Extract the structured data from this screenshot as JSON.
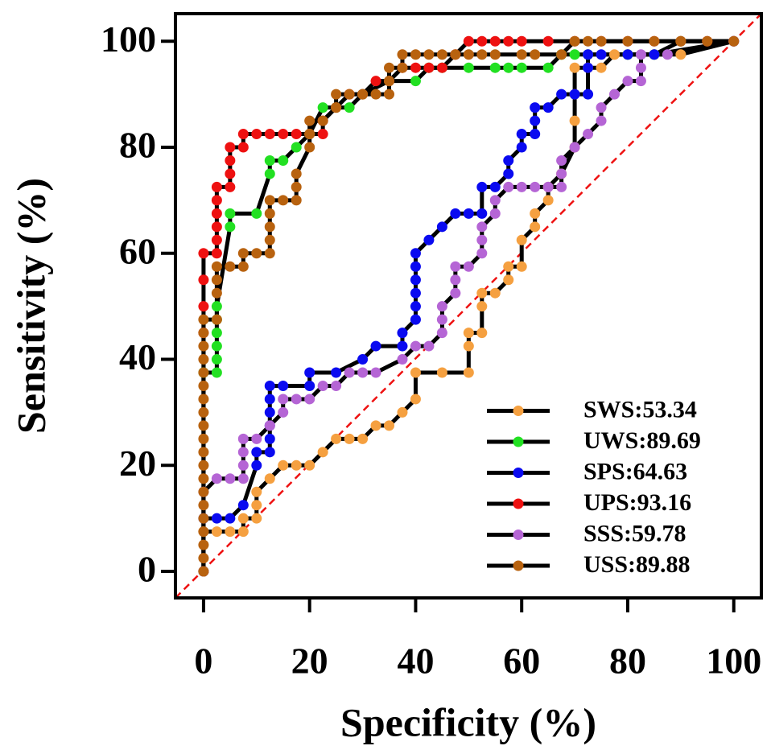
{
  "chart_data": {
    "type": "line",
    "xlabel": "Specificity (%)",
    "ylabel": "Sensitivity (%)",
    "xlim": [
      -5.3,
      105.2
    ],
    "ylim": [
      -5,
      105.2
    ],
    "xticks": [
      0,
      20,
      40,
      60,
      80,
      100
    ],
    "yticks": [
      0,
      20,
      40,
      60,
      80,
      100
    ],
    "legend": "lower right",
    "line_color": "#000000",
    "reference_color": "#ee1111",
    "series": [
      {
        "name": "SWS:53.34",
        "color": "#f5a040",
        "x": [
          0,
          0,
          2.5,
          5,
          7.5,
          7.5,
          10,
          10,
          10,
          12.5,
          15,
          17.5,
          20,
          22.5,
          25,
          27.5,
          30,
          32.5,
          35,
          37.5,
          40,
          40,
          45,
          50,
          50,
          50,
          52.5,
          52.5,
          52.5,
          55,
          57.5,
          57.5,
          60,
          60,
          62.5,
          62.5,
          65,
          65,
          67.5,
          70,
          70,
          70,
          70,
          72.5,
          75,
          77.5,
          80,
          85,
          90,
          100
        ],
        "values": [
          0,
          7.5,
          7.5,
          7.5,
          7.5,
          10,
          10,
          12.5,
          15,
          17.5,
          20,
          20,
          20,
          22.5,
          25,
          25,
          25,
          27.5,
          27.5,
          30,
          32.5,
          37.5,
          37.5,
          37.5,
          42.5,
          45,
          45,
          50,
          52.5,
          52.5,
          55,
          57.5,
          57.5,
          62.5,
          65,
          67.5,
          70,
          72.5,
          75,
          80,
          85,
          90,
          95,
          95,
          95,
          97.5,
          97.5,
          97.5,
          97.5,
          100
        ]
      },
      {
        "name": "UWS:89.69",
        "color": "#22e022",
        "x": [
          0,
          0,
          2.5,
          2.5,
          2.5,
          2.5,
          2.5,
          2.5,
          5,
          5,
          10,
          12.5,
          12.5,
          15,
          17.5,
          20,
          22.5,
          25,
          27.5,
          30,
          35,
          40,
          42.5,
          45,
          50,
          55,
          57.5,
          60,
          65,
          67.5,
          70,
          72.5,
          80,
          85,
          90,
          100
        ],
        "values": [
          0,
          37.5,
          37.5,
          40,
          42.5,
          45,
          47.5,
          50,
          65,
          67.5,
          67.5,
          75,
          77.5,
          77.5,
          80,
          82.5,
          87.5,
          87.5,
          87.5,
          90,
          92.5,
          92.5,
          95,
          95,
          95,
          95,
          95,
          95,
          95,
          97.5,
          97.5,
          97.5,
          97.5,
          97.5,
          100,
          100
        ]
      },
      {
        "name": "SPS:64.63",
        "color": "#0a0af0",
        "x": [
          0,
          0,
          2.5,
          5,
          7.5,
          10,
          10,
          12.5,
          12.5,
          12.5,
          12.5,
          12.5,
          12.5,
          15,
          20,
          20,
          25,
          30,
          32.5,
          37.5,
          37.5,
          40,
          40,
          40,
          40,
          40,
          40,
          42.5,
          45,
          47.5,
          50,
          52.5,
          52.5,
          55,
          57.5,
          57.5,
          60,
          60,
          62.5,
          62.5,
          62.5,
          65,
          67.5,
          70,
          72.5,
          72.5,
          72.5,
          75,
          80,
          85,
          100
        ],
        "values": [
          0,
          10,
          10,
          10,
          12.5,
          20,
          22.5,
          22.5,
          25,
          27.5,
          30,
          32.5,
          35,
          35,
          35,
          37.5,
          37.5,
          40,
          42.5,
          42.5,
          45,
          47.5,
          50,
          52.5,
          55,
          57.5,
          60,
          62.5,
          65,
          67.5,
          67.5,
          67.5,
          72.5,
          72.5,
          75,
          77.5,
          80,
          82.5,
          82.5,
          85,
          87.5,
          87.5,
          90,
          90,
          90,
          95,
          97.5,
          97.5,
          97.5,
          97.5,
          100
        ]
      },
      {
        "name": "UPS:93.16",
        "color": "#ee1111",
        "x": [
          0,
          0,
          0,
          0,
          0,
          2.5,
          2.5,
          2.5,
          2.5,
          2.5,
          2.5,
          5,
          5,
          5,
          5,
          7.5,
          7.5,
          10,
          12.5,
          15,
          17.5,
          20,
          22.5,
          22.5,
          25,
          27.5,
          30,
          32.5,
          35,
          37.5,
          40,
          42.5,
          45,
          47.5,
          50,
          52.5,
          55,
          57.5,
          60,
          65,
          70,
          75,
          80,
          85,
          90,
          95,
          100
        ],
        "values": [
          0,
          45,
          50,
          55,
          60,
          60,
          62.5,
          65,
          67.5,
          70,
          72.5,
          72.5,
          75,
          77.5,
          80,
          80,
          82.5,
          82.5,
          82.5,
          82.5,
          82.5,
          82.5,
          82.5,
          85,
          87.5,
          90,
          90,
          92.5,
          92.5,
          95,
          95,
          95,
          95,
          97.5,
          100,
          100,
          100,
          100,
          100,
          100,
          100,
          100,
          100,
          100,
          100,
          100,
          100
        ]
      },
      {
        "name": "SSS:59.78",
        "color": "#b565d5",
        "x": [
          0,
          0,
          2.5,
          5,
          7.5,
          7.5,
          7.5,
          7.5,
          10,
          12.5,
          15,
          15,
          17.5,
          20,
          22.5,
          25,
          27.5,
          30,
          32.5,
          37.5,
          40,
          42.5,
          45,
          45,
          45,
          47.5,
          47.5,
          47.5,
          50,
          52.5,
          52.5,
          52.5,
          55,
          55,
          57.5,
          60,
          62.5,
          65,
          67.5,
          67.5,
          67.5,
          70,
          72.5,
          75,
          75,
          77.5,
          80,
          82.5,
          82.5,
          82.5,
          87.5,
          100
        ],
        "values": [
          0,
          15,
          17.5,
          17.5,
          17.5,
          20,
          22.5,
          25,
          25,
          27.5,
          30,
          32.5,
          32.5,
          32.5,
          35,
          35,
          37.5,
          37.5,
          37.5,
          40,
          42.5,
          42.5,
          45,
          47.5,
          50,
          52.5,
          55,
          57.5,
          57.5,
          60,
          62.5,
          65,
          67.5,
          70,
          72.5,
          72.5,
          72.5,
          72.5,
          72.5,
          75,
          77.5,
          80,
          82.5,
          85,
          87.5,
          90,
          92.5,
          92.5,
          95,
          97.5,
          97.5,
          100
        ]
      },
      {
        "name": "USS:89.88",
        "color": "#b8620f",
        "x": [
          0,
          0,
          0,
          0,
          0,
          0,
          0,
          0,
          0,
          0,
          0,
          0,
          0,
          0,
          0,
          0,
          0,
          0,
          0,
          0,
          2.5,
          2.5,
          2.5,
          2.5,
          5,
          7.5,
          7.5,
          10,
          12.5,
          12.5,
          12.5,
          12.5,
          12.5,
          15,
          17.5,
          17.5,
          17.5,
          20,
          20,
          20,
          22.5,
          25,
          25,
          27.5,
          30,
          32.5,
          35,
          35,
          35,
          37.5,
          37.5,
          40,
          42.5,
          45,
          47.5,
          50,
          52.5,
          55,
          60,
          62.5,
          67.5,
          70,
          72.5,
          75,
          80,
          85,
          90,
          95,
          100
        ],
        "values": [
          0,
          2.5,
          5,
          7.5,
          10,
          12.5,
          15,
          17.5,
          20,
          22.5,
          25,
          27.5,
          30,
          32.5,
          35,
          37.5,
          40,
          42.5,
          45,
          47.5,
          47.5,
          52.5,
          55,
          57.5,
          57.5,
          57.5,
          60,
          60,
          60,
          62.5,
          65,
          67.5,
          70,
          70,
          70,
          72.5,
          75,
          80,
          82.5,
          85,
          85,
          87.5,
          90,
          90,
          90,
          90,
          90,
          92.5,
          95,
          95,
          97.5,
          97.5,
          97.5,
          97.5,
          97.5,
          97.5,
          97.5,
          97.5,
          97.5,
          97.5,
          97.5,
          100,
          100,
          100,
          100,
          100,
          100,
          100,
          100
        ]
      }
    ]
  }
}
